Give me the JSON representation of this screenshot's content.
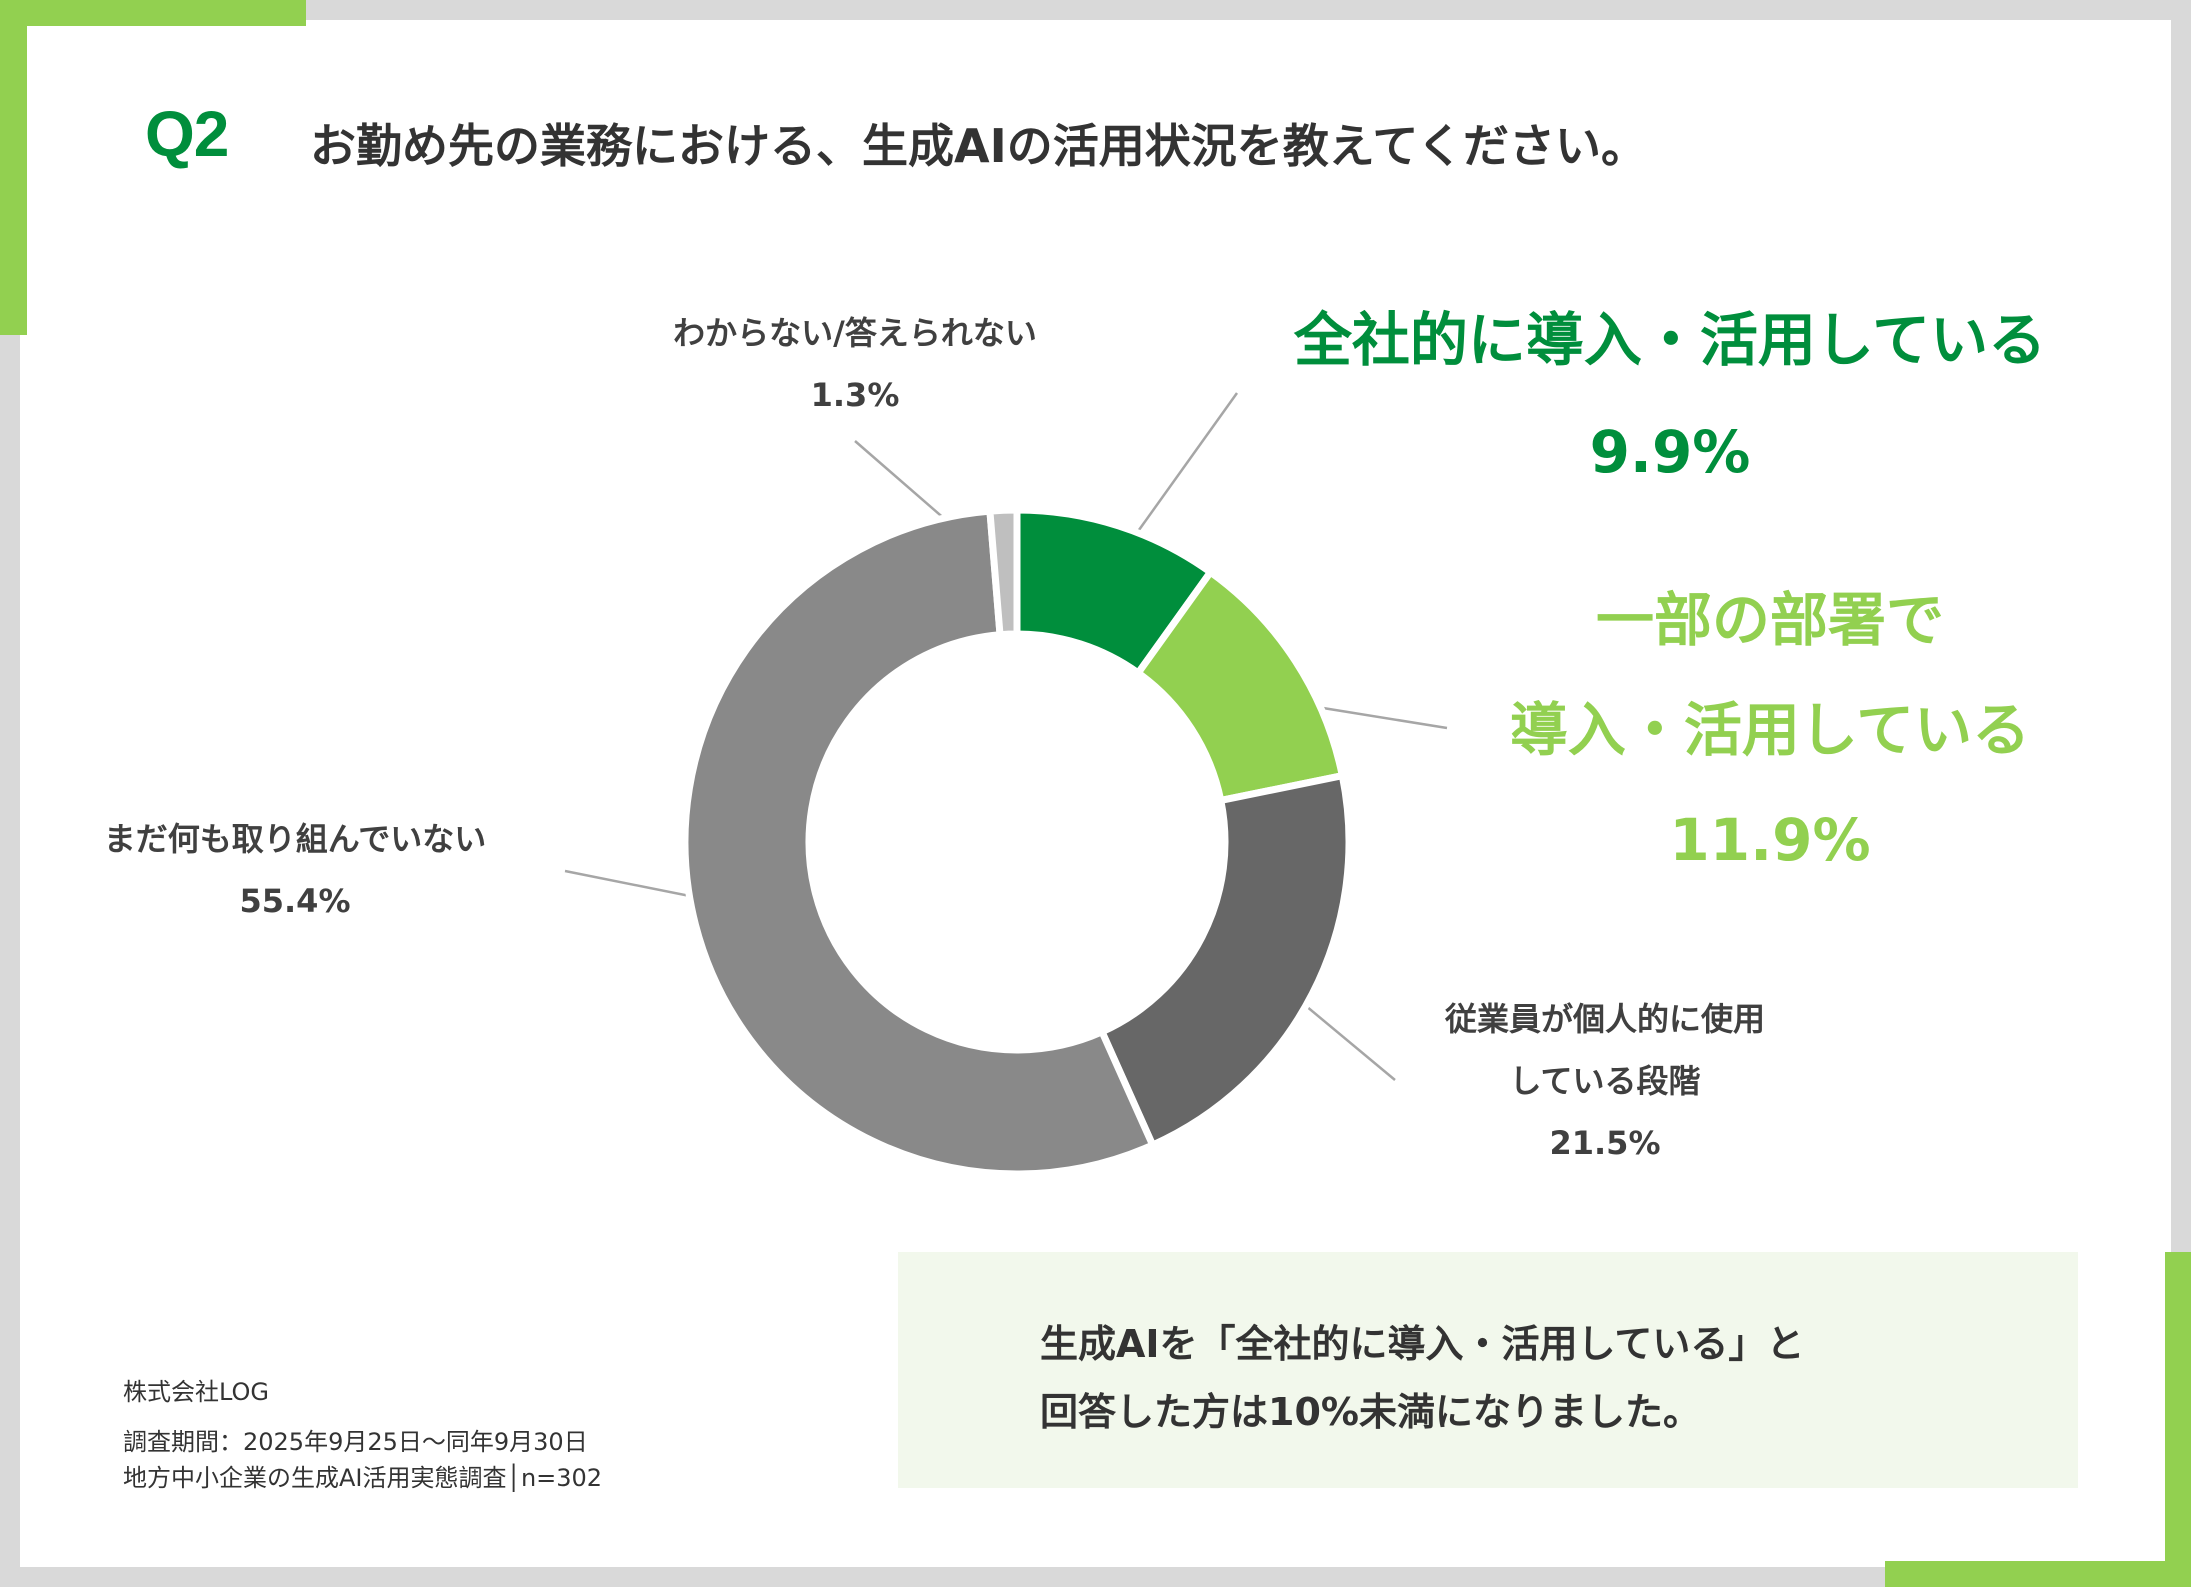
{
  "question": {
    "number": "Q2",
    "text": "お勤め先の業務における、生成AIの活用状況を教えてください。"
  },
  "chart_data": {
    "type": "pie",
    "variant": "donut",
    "start_angle_deg": 0,
    "direction": "clockwise",
    "categories": [
      "全社的に導入・活用している",
      "一部の部署で導入・活用している",
      "従業員が個人的に使用している段階",
      "まだ何も取り組んでいない",
      "わからない/答えられない"
    ],
    "values": [
      9.9,
      11.9,
      21.5,
      55.4,
      1.3
    ],
    "unit": "%",
    "colors": [
      "#008e3c",
      "#92d050",
      "#676767",
      "#898989",
      "#bfbfbf"
    ]
  },
  "labels": {
    "zenshateki": {
      "lines": [
        "全社的に導入・活用している"
      ],
      "value": "9.9%"
    },
    "ichibu": {
      "lines": [
        "一部の部署で",
        "導入・活用している"
      ],
      "value": "11.9%"
    },
    "kojin": {
      "lines": [
        "従業員が個人的に使用",
        "している段階"
      ],
      "value": "21.5%"
    },
    "mada": {
      "lines": [
        "まだ何も取り組んでいない"
      ],
      "value": "55.4%"
    },
    "wakaranai": {
      "lines": [
        "わからない/答えられない"
      ],
      "value": "1.3%"
    }
  },
  "footer": {
    "company": "株式会社LOG",
    "period": "調査期間：2025年9月25日〜同年9月30日",
    "survey": "地方中小企業の生成AI活用実態調査│n=302"
  },
  "summary": {
    "line1": "生成AIを「全社的に導入・活用している」と",
    "line2": "回答した方は10%未満になりました。"
  },
  "colors": {
    "brand_green": "#008e3c",
    "light_green": "#92d050",
    "summary_bg": "#f2f8ec",
    "frame_gray": "#d9d9d9"
  }
}
